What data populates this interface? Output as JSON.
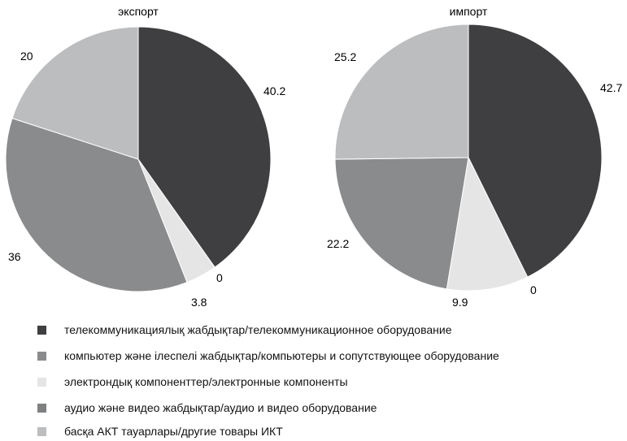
{
  "chart_data": [
    {
      "type": "pie",
      "title": "экспорт",
      "slices": [
        {
          "category": "телекоммуникациялық жабдықтар/телекоммуникационное оборудование",
          "value": 40.2,
          "label": "40.2"
        },
        {
          "category": "аудио және видео жабдықтар/аудио и видео оборудование",
          "value": 0,
          "label": "0"
        },
        {
          "category": "электрондық компоненттер/электронные компоненты",
          "value": 3.8,
          "label": "3.8"
        },
        {
          "category": "компьютер және ілеспелі жабдықтар/компьютеры и сопутствующее оборудование",
          "value": 36,
          "label": "36"
        },
        {
          "category": "басқа АКТ тауарлары/другие товары ИКТ",
          "value": 20,
          "label": "20"
        }
      ]
    },
    {
      "type": "pie",
      "title": "импорт",
      "slices": [
        {
          "category": "телекоммуникациялық жабдықтар/телекоммуникационное оборудование",
          "value": 42.7,
          "label": "42.7"
        },
        {
          "category": "аудио және видео жабдықтар/аудио и видео оборудование",
          "value": 0,
          "label": "0"
        },
        {
          "category": "электрондық компоненттер/электронные компоненты",
          "value": 9.9,
          "label": "9.9"
        },
        {
          "category": "компьютер және ілеспелі жабдықтар/компьютеры и сопутствующее оборудование",
          "value": 22.2,
          "label": "22.2"
        },
        {
          "category": "басқа АКТ тауарлары/другие товары ИКТ",
          "value": 25.2,
          "label": "25.2"
        }
      ]
    }
  ],
  "legend": [
    {
      "label": "телекоммуникациялық жабдықтар/телекоммуникационное оборудование",
      "color": "#3f3f41"
    },
    {
      "label": "компьютер және ілеспелі жабдықтар/компьютеры и сопутствующее оборудование",
      "color": "#8a8b8d"
    },
    {
      "label": "электрондық компоненттер/электронные компоненты",
      "color": "#e5e5e6"
    },
    {
      "label": "аудио және видео жабдықтар/аудио и видео оборудование",
      "color": "#7f8082"
    },
    {
      "label": "басқа АКТ тауарлары/другие товары ИКТ",
      "color": "#bcbdbf"
    }
  ],
  "colors": {
    "телекоммуникациялық жабдықтар/телекоммуникационное оборудование": "#3f3f41",
    "компьютер және ілеспелі жабдықтар/компьютеры и сопутствующее оборудование": "#8a8b8d",
    "электрондық компоненттер/электронные компоненты": "#e5e5e6",
    "аудио және видео жабдықтар/аудио и видео оборудование": "#7f8082",
    "басқа АКТ тауарлары/другие товары ИКТ": "#bcbdbf"
  }
}
